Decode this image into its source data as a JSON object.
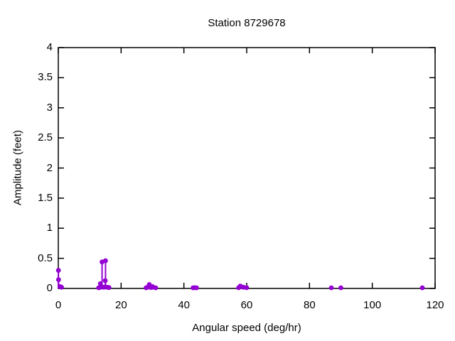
{
  "chart_data": {
    "type": "scatter",
    "style": "impulses+points",
    "title": "Station 8729678",
    "xlabel": "Angular speed (deg/hr)",
    "ylabel": "Amplitude (feet)",
    "xlim": [
      0,
      120
    ],
    "ylim": [
      0,
      4
    ],
    "x_ticks": [
      0,
      20,
      40,
      60,
      80,
      100,
      120
    ],
    "y_ticks": [
      0,
      0.5,
      1,
      1.5,
      2,
      2.5,
      3,
      3.5,
      4
    ],
    "grid": false,
    "legend": "none",
    "point_color": "#9400d3",
    "axis_color": "#000000",
    "points": [
      [
        0.041,
        0.3
      ],
      [
        0.082,
        0.145
      ],
      [
        0.544,
        0.03
      ],
      [
        1.016,
        0.02
      ],
      [
        12.854,
        0.01
      ],
      [
        13.399,
        0.08
      ],
      [
        13.472,
        0.02
      ],
      [
        13.943,
        0.44
      ],
      [
        14.492,
        0.02
      ],
      [
        14.959,
        0.13
      ],
      [
        15.041,
        0.46
      ],
      [
        15.585,
        0.02
      ],
      [
        16.139,
        0.015
      ],
      [
        27.968,
        0.01
      ],
      [
        28.44,
        0.02
      ],
      [
        28.984,
        0.065
      ],
      [
        29.528,
        0.015
      ],
      [
        30.0,
        0.03
      ],
      [
        30.082,
        0.02
      ],
      [
        31.016,
        0.01
      ],
      [
        42.927,
        0.01
      ],
      [
        43.476,
        0.012
      ],
      [
        44.025,
        0.01
      ],
      [
        57.424,
        0.012
      ],
      [
        57.968,
        0.04
      ],
      [
        58.984,
        0.02
      ],
      [
        60.0,
        0.012
      ],
      [
        86.952,
        0.01
      ],
      [
        90.0,
        0.01
      ],
      [
        115.936,
        0.01
      ]
    ]
  }
}
